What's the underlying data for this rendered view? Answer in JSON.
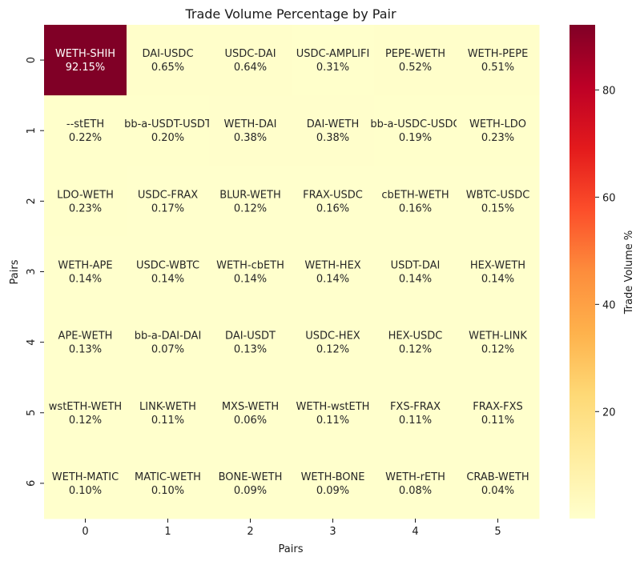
{
  "chart_data": {
    "type": "heatmap",
    "title": "Trade Volume Percentage by Pair",
    "xlabel": "Pairs",
    "ylabel": "Pairs",
    "x_ticks": [
      "0",
      "1",
      "2",
      "3",
      "4",
      "5"
    ],
    "y_ticks": [
      "0",
      "1",
      "2",
      "3",
      "4",
      "5",
      "6"
    ],
    "colorbar": {
      "label": "Trade Volume %",
      "ticks": [
        20,
        40,
        60,
        80
      ],
      "tick_labels": [
        "20",
        "40",
        "60",
        "80"
      ],
      "range": [
        0.04,
        92.15
      ],
      "colormap": "YlOrRd"
    },
    "cells": [
      [
        {
          "pair": "WETH-SHIH",
          "value": 92.15,
          "label": "92.15%"
        },
        {
          "pair": "DAI-USDC",
          "value": 0.65,
          "label": "0.65%"
        },
        {
          "pair": "USDC-DAI",
          "value": 0.64,
          "label": "0.64%"
        },
        {
          "pair": "USDC-AMPLIFI",
          "value": 0.31,
          "label": "0.31%"
        },
        {
          "pair": "PEPE-WETH",
          "value": 0.52,
          "label": "0.52%"
        },
        {
          "pair": "WETH-PEPE",
          "value": 0.51,
          "label": "0.51%"
        }
      ],
      [
        {
          "pair": "--stETH",
          "value": 0.22,
          "label": "0.22%"
        },
        {
          "pair": "bb-a-USDT-USDT",
          "value": 0.2,
          "label": "0.20%"
        },
        {
          "pair": "WETH-DAI",
          "value": 0.38,
          "label": "0.38%"
        },
        {
          "pair": "DAI-WETH",
          "value": 0.38,
          "label": "0.38%"
        },
        {
          "pair": "bb-a-USDC-USDC",
          "value": 0.19,
          "label": "0.19%"
        },
        {
          "pair": "WETH-LDO",
          "value": 0.23,
          "label": "0.23%"
        }
      ],
      [
        {
          "pair": "LDO-WETH",
          "value": 0.23,
          "label": "0.23%"
        },
        {
          "pair": "USDC-FRAX",
          "value": 0.17,
          "label": "0.17%"
        },
        {
          "pair": "BLUR-WETH",
          "value": 0.12,
          "label": "0.12%"
        },
        {
          "pair": "FRAX-USDC",
          "value": 0.16,
          "label": "0.16%"
        },
        {
          "pair": "cbETH-WETH",
          "value": 0.16,
          "label": "0.16%"
        },
        {
          "pair": "WBTC-USDC",
          "value": 0.15,
          "label": "0.15%"
        }
      ],
      [
        {
          "pair": "WETH-APE",
          "value": 0.14,
          "label": "0.14%"
        },
        {
          "pair": "USDC-WBTC",
          "value": 0.14,
          "label": "0.14%"
        },
        {
          "pair": "WETH-cbETH",
          "value": 0.14,
          "label": "0.14%"
        },
        {
          "pair": "WETH-HEX",
          "value": 0.14,
          "label": "0.14%"
        },
        {
          "pair": "USDT-DAI",
          "value": 0.14,
          "label": "0.14%"
        },
        {
          "pair": "HEX-WETH",
          "value": 0.14,
          "label": "0.14%"
        }
      ],
      [
        {
          "pair": "APE-WETH",
          "value": 0.13,
          "label": "0.13%"
        },
        {
          "pair": "bb-a-DAI-DAI",
          "value": 0.07,
          "label": "0.07%"
        },
        {
          "pair": "DAI-USDT",
          "value": 0.13,
          "label": "0.13%"
        },
        {
          "pair": "USDC-HEX",
          "value": 0.12,
          "label": "0.12%"
        },
        {
          "pair": "HEX-USDC",
          "value": 0.12,
          "label": "0.12%"
        },
        {
          "pair": "WETH-LINK",
          "value": 0.12,
          "label": "0.12%"
        }
      ],
      [
        {
          "pair": "wstETH-WETH",
          "value": 0.12,
          "label": "0.12%"
        },
        {
          "pair": "LINK-WETH",
          "value": 0.11,
          "label": "0.11%"
        },
        {
          "pair": "MXS-WETH",
          "value": 0.06,
          "label": "0.06%"
        },
        {
          "pair": "WETH-wstETH",
          "value": 0.11,
          "label": "0.11%"
        },
        {
          "pair": "FXS-FRAX",
          "value": 0.11,
          "label": "0.11%"
        },
        {
          "pair": "FRAX-FXS",
          "value": 0.11,
          "label": "0.11%"
        }
      ],
      [
        {
          "pair": "WETH-MATIC",
          "value": 0.1,
          "label": "0.10%"
        },
        {
          "pair": "MATIC-WETH",
          "value": 0.1,
          "label": "0.10%"
        },
        {
          "pair": "BONE-WETH",
          "value": 0.09,
          "label": "0.09%"
        },
        {
          "pair": "WETH-BONE",
          "value": 0.09,
          "label": "0.09%"
        },
        {
          "pair": "WETH-rETH",
          "value": 0.08,
          "label": "0.08%"
        },
        {
          "pair": "CRAB-WETH",
          "value": 0.04,
          "label": "0.04%"
        }
      ]
    ]
  }
}
